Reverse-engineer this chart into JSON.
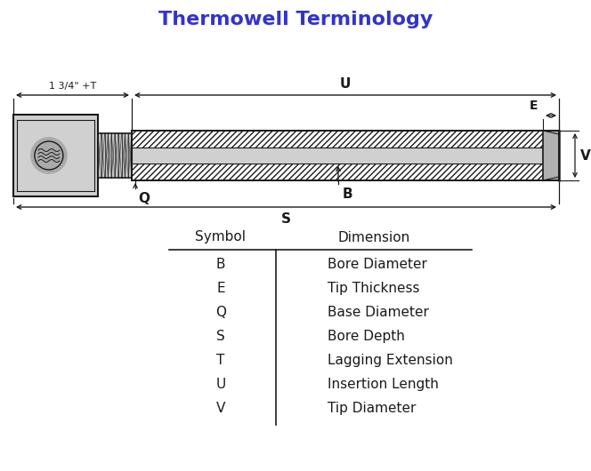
{
  "title": "Thermowell Terminology",
  "title_color": "#3333cc",
  "title_fontsize": 16,
  "background_color": "#ffffff",
  "table_symbols": [
    "B",
    "E",
    "Q",
    "S",
    "T",
    "U",
    "V"
  ],
  "table_dimensions": [
    "Bore Diameter",
    "Tip Thickness",
    "Base Diameter",
    "Bore Depth",
    "Lagging Extension",
    "Insertion Length",
    "Tip Diameter"
  ],
  "table_header_symbol": "Symbol",
  "table_header_dim": "Dimension",
  "dark": "#1a1a1a",
  "body_hatch_color": "#444444",
  "body_face": "#ffffff",
  "bore_face": "#d8d8d8",
  "head_face": "#b8b8b8",
  "thread_face": "#c0c0c0"
}
